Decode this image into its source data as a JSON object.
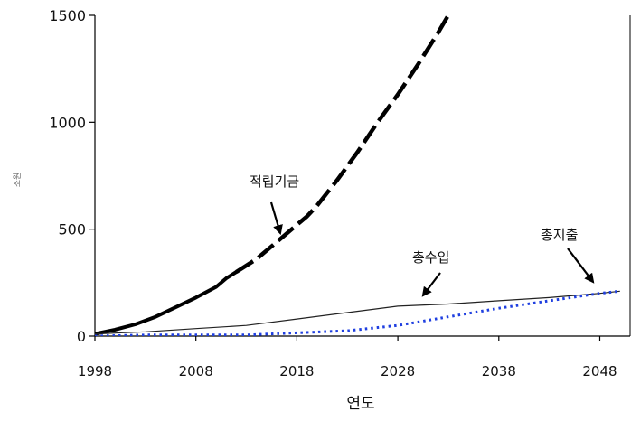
{
  "chart_data": {
    "type": "line",
    "xlabel": "연도",
    "ylabel": "조원",
    "xlim": [
      1998,
      2051
    ],
    "ylim": [
      0,
      1500
    ],
    "x_ticks": [
      1998,
      2008,
      2018,
      2028,
      2038,
      2048
    ],
    "y_ticks": [
      0,
      500,
      1000,
      1500
    ],
    "grid": false,
    "colors": {
      "axis": "#000000",
      "fund": "#000000",
      "income": "#222222",
      "expense": "#1f3fe0"
    },
    "annotations": [
      {
        "text": "적립기금",
        "series": 0
      },
      {
        "text": "총수입",
        "series": 1
      },
      {
        "text": "총지출",
        "series": 2
      }
    ],
    "series": [
      {
        "style": "thick-solid-then-dashed",
        "x": [
          1998,
          2000,
          2002,
          2004,
          2006,
          2008,
          2010,
          2011,
          2012,
          2014,
          2016,
          2018,
          2019,
          2020,
          2022,
          2024,
          2026,
          2028,
          2030,
          2032,
          2033
        ],
        "y": [
          10,
          30,
          55,
          90,
          135,
          180,
          230,
          270,
          300,
          360,
          440,
          520,
          560,
          610,
          730,
          860,
          1000,
          1130,
          1270,
          1420,
          1500
        ]
      },
      {
        "style": "thin-solid",
        "x": [
          1998,
          2003,
          2008,
          2013,
          2018,
          2023,
          2028,
          2033,
          2038,
          2043,
          2048,
          2050
        ],
        "y": [
          10,
          20,
          35,
          50,
          80,
          110,
          140,
          150,
          165,
          180,
          200,
          210
        ]
      },
      {
        "style": "dotted",
        "x": [
          1998,
          2003,
          2008,
          2013,
          2018,
          2023,
          2028,
          2033,
          2038,
          2043,
          2048,
          2050
        ],
        "y": [
          0,
          5,
          5,
          5,
          15,
          25,
          50,
          90,
          130,
          165,
          200,
          210
        ]
      }
    ]
  }
}
